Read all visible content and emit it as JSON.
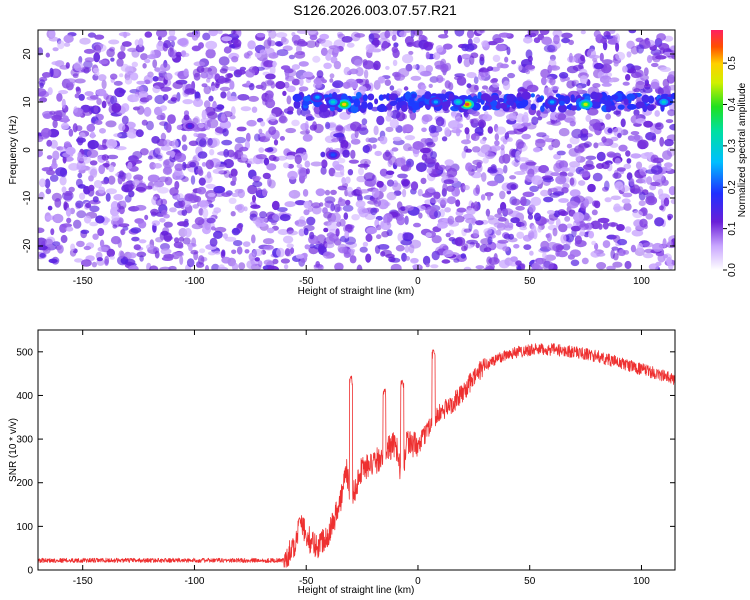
{
  "title": "S126.2026.003.07.57.R21",
  "colors": {
    "snr_line": "#ee3030",
    "spectrogram_base": "#6a1fd8",
    "axis": "#000000"
  },
  "chart_data": [
    {
      "type": "heatmap",
      "name": "spectrogram",
      "xlabel": "Height of straight line (km)",
      "ylabel": "Frequency (Hz)",
      "xlim": [
        -170,
        115
      ],
      "ylim": [
        -25,
        25
      ],
      "x_ticks": [
        "-150",
        "-100",
        "-50",
        "0",
        "50",
        "100"
      ],
      "y_ticks": [
        "-20",
        "-10",
        "0",
        "10",
        "20"
      ],
      "colorbar": {
        "label": "Normalized spectral amplitude",
        "range": [
          0,
          0.58
        ],
        "ticks": [
          "0.0",
          "0.1",
          "0.2",
          "0.3",
          "0.4",
          "0.5"
        ],
        "colormap": "rainbow"
      },
      "features": [
        {
          "x": -33,
          "y": 9.5,
          "amplitude": 0.5
        },
        {
          "x": -38,
          "y": 10,
          "amplitude": 0.3
        },
        {
          "x": -45,
          "y": 11,
          "amplitude": 0.25
        },
        {
          "x": 22,
          "y": 9.5,
          "amplitude": 0.55
        },
        {
          "x": 18,
          "y": 10,
          "amplitude": 0.3
        },
        {
          "x": 8,
          "y": 10,
          "amplitude": 0.25
        },
        {
          "x": 75,
          "y": 9.5,
          "amplitude": 0.45
        },
        {
          "x": 60,
          "y": 10,
          "amplitude": 0.25
        },
        {
          "x": 110,
          "y": 10,
          "amplitude": 0.3
        },
        {
          "x": -38,
          "y": -1,
          "amplitude": 0.2
        },
        {
          "x": -102,
          "y": 5,
          "amplitude": 0.15
        }
      ]
    },
    {
      "type": "line",
      "name": "snr",
      "xlabel": "Height of straight line (km)",
      "ylabel": "SNR (10 * v/v)",
      "xlim": [
        -170,
        115
      ],
      "ylim": [
        0,
        550
      ],
      "x_ticks": [
        "-150",
        "-100",
        "-50",
        "0",
        "50",
        "100"
      ],
      "y_ticks": [
        "0",
        "100",
        "200",
        "300",
        "400",
        "500"
      ],
      "series": [
        {
          "x": [
            -170,
            -150,
            -100,
            -60,
            -55,
            -52,
            -48,
            -45,
            -40,
            -35,
            -32,
            -30,
            -25,
            -20,
            -15,
            -10,
            -7,
            -5,
            0,
            5,
            10,
            15,
            20,
            25,
            30,
            40,
            50,
            60,
            70,
            80,
            90,
            100,
            110,
            115
          ],
          "y": [
            22,
            22,
            22,
            22,
            60,
            100,
            65,
            55,
            85,
            150,
            230,
            160,
            235,
            240,
            270,
            290,
            210,
            300,
            280,
            330,
            360,
            380,
            405,
            440,
            470,
            495,
            505,
            505,
            500,
            490,
            475,
            460,
            445,
            435
          ]
        }
      ],
      "spikes": [
        {
          "x": -53,
          "y": 120
        },
        {
          "x": -30,
          "y": 445
        },
        {
          "x": -15,
          "y": 415
        },
        {
          "x": -7,
          "y": 435
        },
        {
          "x": 7,
          "y": 505
        }
      ]
    }
  ]
}
